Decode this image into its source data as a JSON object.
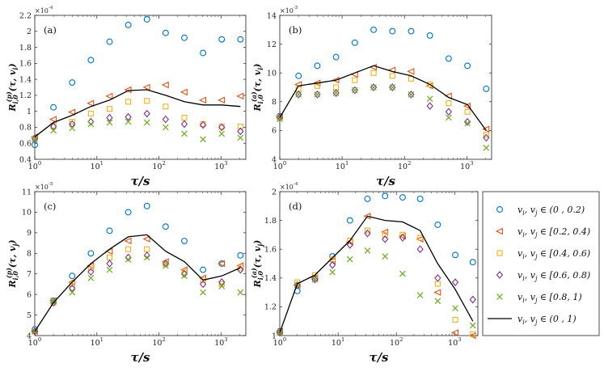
{
  "legend": {
    "entries": [
      {
        "label": "v_i, v_j ∈ (0 , 0.2)",
        "marker": "circle",
        "color": "#0072BD"
      },
      {
        "label": "v_i, v_j ∈ [0.2, 0.4)",
        "marker": "triangle-left",
        "color": "#D95319"
      },
      {
        "label": "v_i, v_j ∈ [0.4, 0.6)",
        "marker": "square",
        "color": "#EDB120"
      },
      {
        "label": "v_i, v_j ∈ [0.6, 0.8)",
        "marker": "diamond",
        "color": "#7E2F8E"
      },
      {
        "label": "v_i, v_j ∈ [0.8, 1)",
        "marker": "x",
        "color": "#77AC30"
      },
      {
        "label": "v_i, v_j ∈ (0 , 1)",
        "marker": "line",
        "color": "#000000"
      }
    ]
  },
  "chart_data": [
    {
      "type": "scatter",
      "panel_label": "(a)",
      "xlabel": "τ/s",
      "ylabel": "R_{i,0}^{(p)}(τ, v_i)",
      "xscale": "log",
      "xlim": [
        1,
        2500
      ],
      "xticks": [
        1,
        10,
        100,
        1000
      ],
      "xtick_labels": [
        "10^0",
        "10^1",
        "10^2",
        "10^3"
      ],
      "ylim": [
        0.4,
        2.2
      ],
      "yticks": [
        0.4,
        0.6,
        0.8,
        1,
        1.2,
        1.4,
        1.6,
        1.8,
        2,
        2.2
      ],
      "ytick_labels": [
        "0.4",
        "0.6",
        "0.8",
        "1",
        "1.2",
        "1.4",
        "1.6",
        "1.8",
        "2",
        "2.2"
      ],
      "y_multiplier": "×10^-4",
      "x": [
        1,
        2,
        4,
        8,
        16,
        32,
        64,
        128,
        256,
        512,
        1024,
        2048
      ],
      "series": [
        {
          "values": [
            0.58,
            1.05,
            1.36,
            1.64,
            1.87,
            2.08,
            2.15,
            1.98,
            1.92,
            1.73,
            1.9,
            1.9
          ]
        },
        {
          "values": [
            0.68,
            0.9,
            0.99,
            1.1,
            1.19,
            1.27,
            1.3,
            1.33,
            1.24,
            1.14,
            1.14,
            1.19
          ]
        },
        {
          "values": [
            0.66,
            0.82,
            0.87,
            0.97,
            1.03,
            1.12,
            1.13,
            1.06,
            0.92,
            0.84,
            0.81,
            0.81
          ]
        },
        {
          "values": [
            0.66,
            0.81,
            0.84,
            0.87,
            0.92,
            0.93,
            0.97,
            0.9,
            0.84,
            0.83,
            0.8,
            0.75
          ]
        },
        {
          "values": [
            0.65,
            0.76,
            0.79,
            0.84,
            0.86,
            0.87,
            0.86,
            0.8,
            0.72,
            0.65,
            0.72,
            0.67
          ]
        },
        {
          "values": [
            0.68,
            0.86,
            0.95,
            1.06,
            1.14,
            1.26,
            1.27,
            1.2,
            1.12,
            1.08,
            1.08,
            1.06
          ]
        }
      ]
    },
    {
      "type": "scatter",
      "panel_label": "(b)",
      "xlabel": "τ/s",
      "ylabel": "R_{i,0}^{(a)}(τ, v_i)",
      "xscale": "log",
      "xlim": [
        1,
        2500
      ],
      "xticks": [
        1,
        10,
        100,
        1000
      ],
      "xtick_labels": [
        "10^0",
        "10^1",
        "10^2",
        "10^3"
      ],
      "ylim": [
        4,
        14
      ],
      "yticks": [
        4,
        6,
        8,
        10,
        12,
        14
      ],
      "ytick_labels": [
        "4",
        "6",
        "8",
        "10",
        "12",
        "14"
      ],
      "y_multiplier": "×10^-5",
      "x": [
        1,
        2,
        4,
        8,
        16,
        32,
        64,
        128,
        256,
        512,
        1024,
        2048
      ],
      "series": [
        {
          "values": [
            7.0,
            9.8,
            10.5,
            11.1,
            12.1,
            13.0,
            12.9,
            12.9,
            12.6,
            11.0,
            10.5,
            8.9
          ]
        },
        {
          "values": [
            7.0,
            9.2,
            9.3,
            9.5,
            9.9,
            10.4,
            10.2,
            10.1,
            9.1,
            8.4,
            7.7,
            6.1
          ]
        },
        {
          "values": [
            6.9,
            8.9,
            9.1,
            9.0,
            9.5,
            10.0,
            9.8,
            9.6,
            9.2,
            7.9,
            7.3,
            5.7
          ]
        },
        {
          "values": [
            6.9,
            8.5,
            8.5,
            8.6,
            8.8,
            9.0,
            9.0,
            8.5,
            7.7,
            7.3,
            6.6,
            5.5
          ]
        },
        {
          "values": [
            6.8,
            8.5,
            8.5,
            8.6,
            8.8,
            9.0,
            9.0,
            8.5,
            8.2,
            6.9,
            6.5,
            4.8
          ]
        },
        {
          "values": [
            6.9,
            9.1,
            9.3,
            9.5,
            10.0,
            10.5,
            10.1,
            9.8,
            9.2,
            8.3,
            7.8,
            6.0
          ]
        }
      ]
    },
    {
      "type": "scatter",
      "panel_label": "(c)",
      "xlabel": "τ/s",
      "ylabel": "R_{i,0}^{(p)}(τ, v_j)",
      "xscale": "log",
      "xlim": [
        1,
        2500
      ],
      "xticks": [
        1,
        10,
        100,
        1000
      ],
      "xtick_labels": [
        "10^0",
        "10^1",
        "10^2",
        "10^3"
      ],
      "ylim": [
        4,
        11
      ],
      "yticks": [
        4,
        5,
        6,
        7,
        8,
        9,
        10,
        11
      ],
      "ytick_labels": [
        "4",
        "5",
        "6",
        "7",
        "8",
        "9",
        "10",
        "11"
      ],
      "y_multiplier": "×10^-5",
      "x": [
        1,
        2,
        4,
        8,
        16,
        32,
        64,
        128,
        256,
        512,
        1024,
        2048
      ],
      "series": [
        {
          "values": [
            4.3,
            5.7,
            6.9,
            8.0,
            9.1,
            10.0,
            10.3,
            9.3,
            8.6,
            7.2,
            7.5,
            7.9
          ]
        },
        {
          "values": [
            4.2,
            5.7,
            6.6,
            7.4,
            8.1,
            8.6,
            8.7,
            7.6,
            7.2,
            6.8,
            7.5,
            7.4
          ]
        },
        {
          "values": [
            4.2,
            5.6,
            6.5,
            7.3,
            7.8,
            8.2,
            8.2,
            7.5,
            7.1,
            6.7,
            6.5,
            7.3
          ]
        },
        {
          "values": [
            4.2,
            5.6,
            6.3,
            7.1,
            7.5,
            7.8,
            7.9,
            7.5,
            7.0,
            6.5,
            6.6,
            7.2
          ]
        },
        {
          "values": [
            4.2,
            5.7,
            6.1,
            6.8,
            7.2,
            7.7,
            7.8,
            7.4,
            6.9,
            6.1,
            6.4,
            6.1
          ]
        },
        {
          "values": [
            4.2,
            5.6,
            6.6,
            7.5,
            8.2,
            8.8,
            8.9,
            8.1,
            7.6,
            6.7,
            6.9,
            7.3
          ]
        }
      ]
    },
    {
      "type": "scatter",
      "panel_label": "(d)",
      "xlabel": "τ/s",
      "ylabel": "R_{i,0}^{(a)}(τ, v_j)",
      "xscale": "log",
      "xlim": [
        1,
        2500
      ],
      "xticks": [
        1,
        10,
        100,
        1000
      ],
      "xtick_labels": [
        "10^0",
        "10^1",
        "10^2",
        "10^3"
      ],
      "ylim": [
        1,
        2
      ],
      "yticks": [
        1,
        1.2,
        1.4,
        1.6,
        1.8,
        2
      ],
      "ytick_labels": [
        "1",
        "1.2",
        "1.4",
        "1.6",
        "1.8",
        "2"
      ],
      "y_multiplier": "×10^-4",
      "x": [
        1,
        2,
        4,
        8,
        16,
        32,
        64,
        128,
        256,
        512,
        1024,
        2048
      ],
      "series": [
        {
          "values": [
            1.03,
            1.31,
            1.4,
            1.55,
            1.8,
            1.95,
            1.97,
            1.96,
            1.95,
            1.77,
            1.56,
            1.51
          ]
        },
        {
          "values": [
            1.03,
            1.35,
            1.4,
            1.52,
            1.65,
            1.83,
            1.72,
            1.69,
            1.67,
            1.3,
            1.02,
            1.0
          ]
        },
        {
          "values": [
            1.02,
            1.37,
            1.42,
            1.53,
            1.66,
            1.73,
            1.7,
            1.7,
            1.68,
            1.36,
            1.11,
            1.01
          ]
        },
        {
          "values": [
            1.02,
            1.35,
            1.39,
            1.49,
            1.63,
            1.71,
            1.67,
            1.68,
            1.6,
            1.4,
            1.37,
            1.25
          ]
        },
        {
          "values": [
            1.02,
            1.35,
            1.39,
            1.44,
            1.53,
            1.59,
            1.55,
            1.43,
            1.28,
            1.24,
            1.19,
            1.07
          ]
        },
        {
          "values": [
            1.02,
            1.36,
            1.42,
            1.54,
            1.66,
            1.83,
            1.8,
            1.79,
            1.73,
            1.5,
            1.32,
            1.1
          ]
        }
      ]
    }
  ]
}
